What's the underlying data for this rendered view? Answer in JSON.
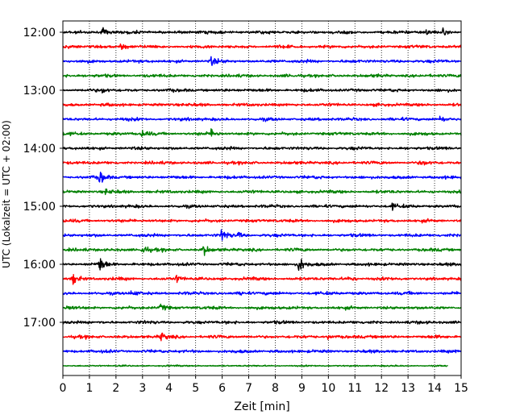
{
  "chart_data": {
    "type": "line",
    "title": "",
    "xlabel": "Zeit  [min]",
    "ylabel": "UTC (Lokalzeit = UTC + 02:00)",
    "xlim": [
      0,
      15
    ],
    "x_ticks": [
      0,
      1,
      2,
      3,
      4,
      5,
      6,
      7,
      8,
      9,
      10,
      11,
      12,
      13,
      14,
      15
    ],
    "x_tick_labels": [
      "0",
      "1",
      "2",
      "3",
      "4",
      "5",
      "6",
      "7",
      "8",
      "9",
      "10",
      "11",
      "12",
      "13",
      "14",
      "15"
    ],
    "y_tick_labels": [
      "12:00",
      "13:00",
      "14:00",
      "15:00",
      "16:00",
      "17:00"
    ],
    "y_tick_rows": [
      0,
      4,
      8,
      12,
      16,
      20
    ],
    "grid": "vertical dotted",
    "row_minutes": 15,
    "row_colors": [
      "#000000",
      "#ff0000",
      "#0000ff",
      "#008000"
    ],
    "row_count": 24,
    "last_row_end_min": 14.5,
    "rows": [
      {
        "start": "12:00",
        "events": [
          [
            1.5,
            1.6
          ],
          [
            13.7,
            1.1
          ],
          [
            14.3,
            1.1
          ]
        ]
      },
      {
        "start": "12:15",
        "events": [
          [
            2.2,
            1.3
          ]
        ]
      },
      {
        "start": "12:30",
        "events": [
          [
            5.6,
            1.5
          ]
        ]
      },
      {
        "start": "12:45",
        "events": []
      },
      {
        "start": "13:00",
        "events": [
          [
            1.5,
            0.8
          ]
        ]
      },
      {
        "start": "13:15",
        "events": []
      },
      {
        "start": "13:30",
        "events": [
          [
            14.2,
            1.0
          ]
        ]
      },
      {
        "start": "13:45",
        "events": [
          [
            3.0,
            1.3
          ],
          [
            5.6,
            1.5
          ]
        ]
      },
      {
        "start": "14:00",
        "events": []
      },
      {
        "start": "14:15",
        "events": [
          [
            13.5,
            0.8
          ]
        ]
      },
      {
        "start": "14:30",
        "events": [
          [
            1.4,
            2.6
          ]
        ]
      },
      {
        "start": "14:45",
        "events": [
          [
            1.6,
            0.8
          ]
        ]
      },
      {
        "start": "15:00",
        "events": [
          [
            12.4,
            1.0
          ]
        ]
      },
      {
        "start": "15:15",
        "events": []
      },
      {
        "start": "15:30",
        "events": [
          [
            6.0,
            2.3
          ],
          [
            6.6,
            1.0
          ]
        ]
      },
      {
        "start": "15:45",
        "events": [
          [
            3.0,
            2.0
          ],
          [
            5.3,
            2.0
          ]
        ]
      },
      {
        "start": "16:00",
        "events": [
          [
            1.4,
            3.2
          ],
          [
            8.9,
            3.2
          ]
        ]
      },
      {
        "start": "16:15",
        "events": [
          [
            0.4,
            2.0
          ],
          [
            4.3,
            1.2
          ],
          [
            10.8,
            1.1
          ]
        ]
      },
      {
        "start": "16:30",
        "events": [
          [
            2.6,
            1.0
          ],
          [
            6.7,
            0.7
          ]
        ]
      },
      {
        "start": "16:45",
        "events": [
          [
            0.2,
            1.0
          ],
          [
            3.7,
            1.2
          ]
        ]
      },
      {
        "start": "17:00",
        "events": []
      },
      {
        "start": "17:15",
        "events": [
          [
            3.7,
            1.3
          ],
          [
            10.0,
            0.8
          ]
        ]
      },
      {
        "start": "17:30",
        "events": []
      },
      {
        "start": "17:45",
        "events": []
      }
    ]
  }
}
